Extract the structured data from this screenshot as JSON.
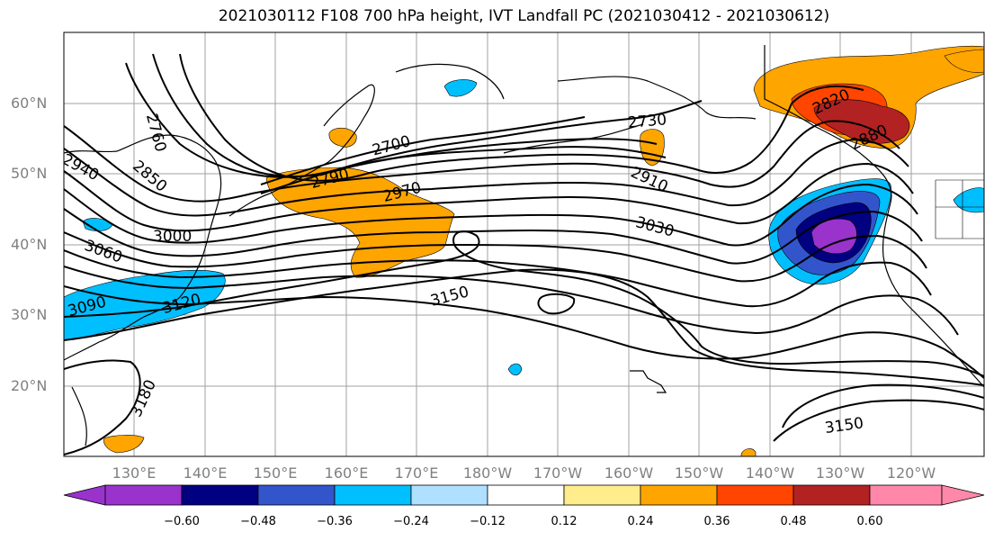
{
  "title": "2021030112 F108 700 hPa height, IVT Landfall PC (2021030412 - 2021030612)",
  "map": {
    "lat_labels": [
      "60°N",
      "50°N",
      "40°N",
      "30°N",
      "20°N"
    ],
    "lon_labels": [
      "130°E",
      "140°E",
      "150°E",
      "160°E",
      "170°E",
      "180°W",
      "170°W",
      "160°W",
      "150°W",
      "140°W",
      "130°W",
      "120°W"
    ],
    "contour_labels": [
      "2760",
      "2850",
      "2940",
      "3000",
      "3060",
      "3090",
      "3120",
      "3180",
      "2790",
      "2700",
      "2970",
      "2730",
      "2910",
      "3030",
      "3150",
      "2820",
      "2880",
      "3150"
    ],
    "land_color": "#ffffff",
    "contour_color": "#000000",
    "gridline_color": "#a0a0a0"
  },
  "colorbar": {
    "ticks": [
      "−0.60",
      "−0.48",
      "−0.36",
      "−0.24",
      "−0.12",
      "0.12",
      "0.24",
      "0.36",
      "0.48",
      "0.60"
    ],
    "colors": [
      "#9933cc",
      "#000080",
      "#3355cc",
      "#00bfff",
      "#b0e0ff",
      "#ffffff",
      "#ffec8b",
      "#ffa500",
      "#ff4500",
      "#b22222",
      "#ff88aa"
    ]
  }
}
